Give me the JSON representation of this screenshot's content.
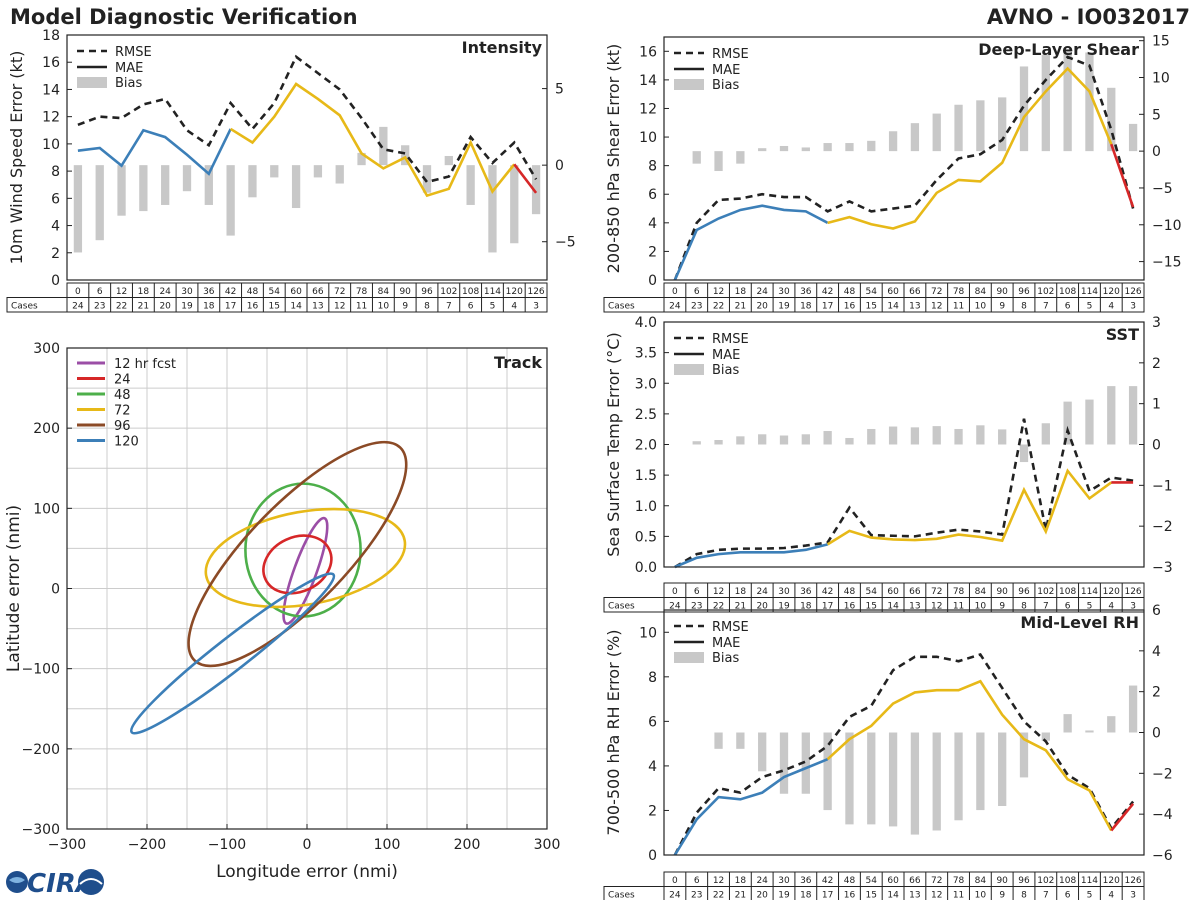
{
  "title": "Model Diagnostic Verification",
  "storm": "AVNO - IO032017",
  "logo": "CIRA",
  "colors": {
    "rmse": "#222222",
    "mae": "#222222",
    "bias": "#c8c8c8",
    "early": "#3c7fb8",
    "mid": "#e7b918",
    "late": "#d62728"
  },
  "cases_label": "Cases",
  "legend": {
    "rmse": "RMSE",
    "mae": "MAE",
    "bias": "Bias"
  },
  "chart_data": [
    {
      "id": "intensity",
      "type": "line",
      "title": "Intensity",
      "ylabel": "10m Wind Speed Error (kt)",
      "ylim": [
        0,
        18
      ],
      "yticks": [
        0,
        2,
        4,
        6,
        8,
        10,
        12,
        14,
        16,
        18
      ],
      "y2lim": [
        -7.5,
        8.5
      ],
      "y2ticks": [
        -5,
        0,
        5
      ],
      "x": [
        0,
        6,
        12,
        18,
        24,
        30,
        36,
        42,
        48,
        54,
        60,
        66,
        72,
        78,
        84,
        90,
        96,
        102,
        108,
        114,
        120,
        126
      ],
      "cases": [
        24,
        23,
        22,
        21,
        20,
        19,
        18,
        17,
        16,
        15,
        14,
        13,
        12,
        11,
        10,
        9,
        8,
        7,
        6,
        5,
        4,
        3
      ],
      "rmse": [
        11.4,
        12.0,
        11.9,
        12.9,
        13.3,
        11.0,
        9.9,
        13.0,
        11.1,
        13.0,
        16.4,
        15.2,
        14.0,
        11.9,
        9.6,
        9.3,
        7.2,
        7.6,
        10.5,
        8.6,
        10.1,
        7.4
      ],
      "mae": [
        9.5,
        9.7,
        8.4,
        11.0,
        10.5,
        9.2,
        7.8,
        11.1,
        10.1,
        12.0,
        14.4,
        13.3,
        12.1,
        9.3,
        8.2,
        9.0,
        6.2,
        6.7,
        10.1,
        6.5,
        8.5,
        6.4
      ],
      "bias": [
        -5.7,
        -4.9,
        -3.3,
        -3.0,
        -2.6,
        -1.7,
        -2.6,
        -4.6,
        -2.1,
        -0.8,
        -2.8,
        -0.8,
        -1.2,
        0.8,
        2.5,
        1.3,
        -1.8,
        0.6,
        -2.6,
        -5.7,
        -5.1,
        -3.2
      ],
      "early_end_index": 7,
      "late_start_index": 20
    },
    {
      "id": "shear",
      "type": "line",
      "title": "Deep-Layer Shear",
      "ylabel": "200-850 hPa Shear Error (kt)",
      "ylim": [
        0,
        17
      ],
      "yticks": [
        0,
        2,
        4,
        6,
        8,
        10,
        12,
        14,
        16
      ],
      "y2lim": [
        -17.5,
        15.5
      ],
      "y2ticks": [
        -15,
        -10,
        -5,
        0,
        5,
        10,
        15
      ],
      "x": [
        0,
        6,
        12,
        18,
        24,
        30,
        36,
        42,
        48,
        54,
        60,
        66,
        72,
        78,
        84,
        90,
        96,
        102,
        108,
        114,
        120,
        126
      ],
      "cases": [
        24,
        23,
        22,
        21,
        20,
        19,
        18,
        17,
        16,
        15,
        14,
        13,
        12,
        11,
        10,
        9,
        8,
        7,
        6,
        5,
        4,
        3
      ],
      "rmse": [
        0.0,
        4.0,
        5.6,
        5.7,
        6.0,
        5.8,
        5.8,
        4.8,
        5.5,
        4.8,
        5.0,
        5.2,
        7.0,
        8.5,
        8.8,
        9.8,
        12.2,
        14.0,
        15.6,
        15.0,
        10.5,
        5.0
      ],
      "mae": [
        0.0,
        3.5,
        4.3,
        4.9,
        5.2,
        4.9,
        4.8,
        4.0,
        4.4,
        3.9,
        3.6,
        4.1,
        6.1,
        7.0,
        6.9,
        8.2,
        11.4,
        13.2,
        14.8,
        13.2,
        9.5,
        5.1
      ],
      "bias": [
        0.0,
        -1.7,
        -2.7,
        -1.7,
        0.4,
        0.7,
        0.5,
        1.1,
        1.1,
        1.4,
        2.7,
        3.8,
        5.1,
        6.3,
        6.9,
        7.3,
        11.5,
        13.1,
        13.6,
        13.4,
        8.6,
        3.7
      ],
      "early_end_index": 7,
      "late_start_index": 20
    },
    {
      "id": "sst",
      "type": "line",
      "title": "SST",
      "ylabel": "Sea Surface Temp Error (°C)",
      "ylim": [
        0,
        4.0
      ],
      "yticks": [
        0.0,
        0.5,
        1.0,
        1.5,
        2.0,
        2.5,
        3.0,
        3.5,
        4.0
      ],
      "y2lim": [
        -3,
        3
      ],
      "y2ticks": [
        -3,
        -2,
        -1,
        0,
        1,
        2,
        3
      ],
      "x": [
        0,
        6,
        12,
        18,
        24,
        30,
        36,
        42,
        48,
        54,
        60,
        66,
        72,
        78,
        84,
        90,
        96,
        102,
        108,
        114,
        120,
        126
      ],
      "cases": [
        24,
        23,
        22,
        21,
        20,
        19,
        18,
        17,
        16,
        15,
        14,
        13,
        12,
        11,
        10,
        9,
        8,
        7,
        6,
        5,
        4,
        3
      ],
      "rmse": [
        0.0,
        0.21,
        0.28,
        0.3,
        0.3,
        0.31,
        0.35,
        0.4,
        0.97,
        0.52,
        0.51,
        0.5,
        0.56,
        0.61,
        0.58,
        0.53,
        2.42,
        0.6,
        2.23,
        1.24,
        1.46,
        1.41
      ],
      "mae": [
        0.0,
        0.15,
        0.21,
        0.24,
        0.24,
        0.24,
        0.28,
        0.37,
        0.59,
        0.48,
        0.45,
        0.44,
        0.46,
        0.53,
        0.49,
        0.43,
        1.26,
        0.58,
        1.57,
        1.12,
        1.38,
        1.38
      ],
      "bias": [
        0.0,
        0.08,
        0.11,
        0.2,
        0.25,
        0.22,
        0.25,
        0.33,
        0.16,
        0.38,
        0.44,
        0.42,
        0.45,
        0.38,
        0.47,
        0.37,
        -0.43,
        0.52,
        1.05,
        1.1,
        1.43,
        1.43
      ],
      "early_end_index": 7,
      "late_start_index": 20
    },
    {
      "id": "rh",
      "type": "line",
      "title": "Mid-Level RH",
      "ylabel": "700-500 hPa RH Error (%)",
      "ylim": [
        0,
        11
      ],
      "yticks": [
        0,
        2,
        4,
        6,
        8,
        10
      ],
      "y2lim": [
        -6,
        6
      ],
      "y2ticks": [
        -6,
        -4,
        -2,
        0,
        2,
        4,
        6
      ],
      "x": [
        0,
        6,
        12,
        18,
        24,
        30,
        36,
        42,
        48,
        54,
        60,
        66,
        72,
        78,
        84,
        90,
        96,
        102,
        108,
        114,
        120,
        126
      ],
      "cases": [
        24,
        23,
        22,
        21,
        20,
        19,
        18,
        17,
        16,
        15,
        14,
        13,
        12,
        11,
        10,
        9,
        8,
        7,
        6,
        5,
        4,
        3
      ],
      "rmse": [
        0.0,
        1.9,
        3.0,
        2.8,
        3.5,
        3.8,
        4.2,
        4.9,
        6.2,
        6.7,
        8.3,
        8.9,
        8.9,
        8.7,
        9.0,
        7.5,
        6.0,
        5.1,
        3.6,
        3.0,
        1.2,
        2.4
      ],
      "mae": [
        0.0,
        1.6,
        2.6,
        2.5,
        2.8,
        3.5,
        3.9,
        4.3,
        5.2,
        5.8,
        6.8,
        7.3,
        7.4,
        7.4,
        7.8,
        6.3,
        5.2,
        4.7,
        3.4,
        2.9,
        1.1,
        2.3
      ],
      "bias": [
        0.0,
        0.0,
        -0.8,
        -0.8,
        -1.9,
        -3.0,
        -3.0,
        -3.8,
        -4.5,
        -4.5,
        -4.6,
        -5.0,
        -4.8,
        -4.3,
        -3.8,
        -3.6,
        -2.2,
        -0.4,
        0.9,
        0.1,
        0.8,
        2.3
      ],
      "early_end_index": 7,
      "late_start_index": 20
    },
    {
      "id": "track",
      "type": "scatter",
      "title": "Track",
      "xlabel": "Longitude error (nmi)",
      "ylabel": "Latitude error (nmi)",
      "xlim": [
        -300,
        300
      ],
      "ylim": [
        -300,
        300
      ],
      "xticks": [
        -300,
        -200,
        -100,
        0,
        100,
        200,
        300
      ],
      "yticks": [
        -300,
        -200,
        -100,
        0,
        100,
        200,
        300
      ],
      "ellipses": [
        {
          "label": "12 hr fcst",
          "color": "#9b4ea6",
          "cx": -2,
          "cy": 22,
          "rx": 70,
          "ry": 14,
          "angle": 70
        },
        {
          "label": "24",
          "color": "#d62728",
          "cx": -12,
          "cy": 30,
          "rx": 44,
          "ry": 34,
          "angle": 25
        },
        {
          "label": "48",
          "color": "#4daf4a",
          "cx": -5,
          "cy": 48,
          "rx": 72,
          "ry": 83,
          "angle": 0
        },
        {
          "label": "72",
          "color": "#e7b918",
          "cx": -2,
          "cy": 38,
          "rx": 126,
          "ry": 58,
          "angle": 10
        },
        {
          "label": "96",
          "color": "#8b4a26",
          "cx": -12,
          "cy": 43,
          "rx": 185,
          "ry": 62,
          "angle": 46
        },
        {
          "label": "120",
          "color": "#3c7fb8",
          "cx": -93,
          "cy": -81,
          "rx": 160,
          "ry": 20,
          "angle": 38
        }
      ]
    }
  ]
}
